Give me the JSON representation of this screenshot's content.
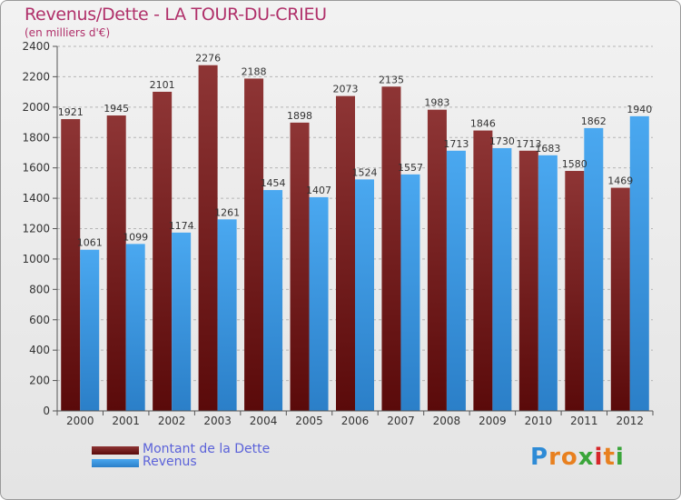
{
  "title": "Revenus/Dette - LA TOUR-DU-CRIEU",
  "subtitle": "(en milliers d'€)",
  "logo": {
    "letters": [
      "P",
      "r",
      "o",
      "x",
      "i",
      "t",
      "i"
    ],
    "colors": [
      "#2e8bd6",
      "#e8801f",
      "#e8801f",
      "#3aa53a",
      "#d6262a",
      "#e8801f",
      "#3aa53a"
    ]
  },
  "legend": {
    "dette_label": "Montant de la Dette",
    "revenus_label": "Revenus"
  },
  "colors": {
    "dette": "#7a1e1e",
    "revenus": "#3d9ae3",
    "grid": "#b5b5b5",
    "text": "#333333"
  },
  "chart_data": {
    "type": "bar",
    "categories": [
      "2000",
      "2001",
      "2002",
      "2003",
      "2004",
      "2005",
      "2006",
      "2007",
      "2008",
      "2009",
      "2010",
      "2011",
      "2012"
    ],
    "series": [
      {
        "name": "Montant de la Dette",
        "values": [
          1921,
          1945,
          2101,
          2276,
          2188,
          1898,
          2073,
          2135,
          1983,
          1846,
          1713,
          1580,
          1469
        ]
      },
      {
        "name": "Revenus",
        "values": [
          1061,
          1099,
          1174,
          1261,
          1454,
          1407,
          1524,
          1557,
          1713,
          1730,
          1683,
          1862,
          1940
        ]
      }
    ],
    "ylim": [
      0,
      2400
    ],
    "yticks": [
      0,
      200,
      400,
      600,
      800,
      1000,
      1200,
      1400,
      1600,
      1800,
      2000,
      2200,
      2400
    ],
    "grid": true,
    "legend_position": "bottom-left"
  }
}
